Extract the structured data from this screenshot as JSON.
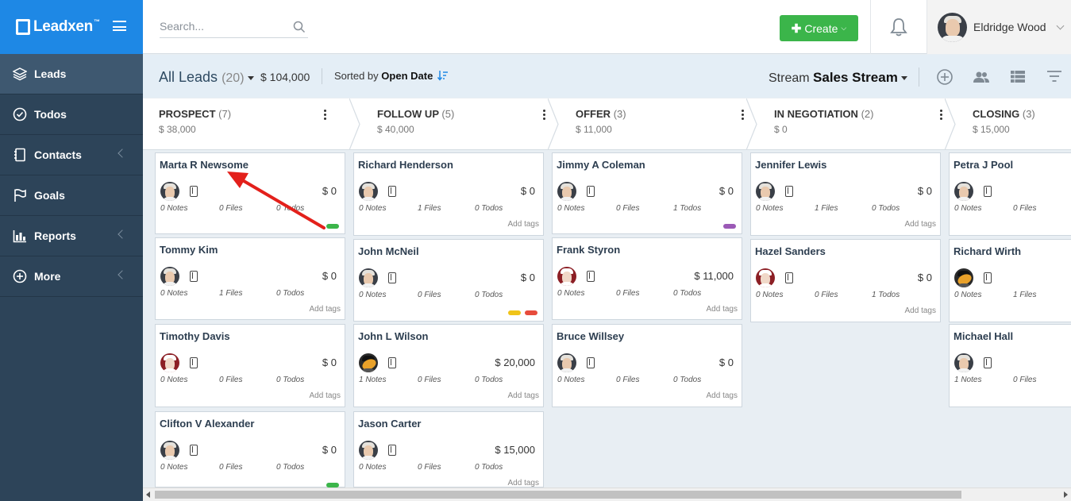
{
  "brand": {
    "name": "Leadxen",
    "tm": "™"
  },
  "sidebar": {
    "items": [
      {
        "label": "Leads",
        "icon": "layers-icon",
        "active": true,
        "chevron": false
      },
      {
        "label": "Todos",
        "icon": "check-circle-icon",
        "active": false,
        "chevron": false
      },
      {
        "label": "Contacts",
        "icon": "address-book-icon",
        "active": false,
        "chevron": true
      },
      {
        "label": "Goals",
        "icon": "flag-icon",
        "active": false,
        "chevron": false
      },
      {
        "label": "Reports",
        "icon": "bar-chart-icon",
        "active": false,
        "chevron": true
      },
      {
        "label": "More",
        "icon": "plus-circle-icon",
        "active": false,
        "chevron": true
      }
    ]
  },
  "header": {
    "search_placeholder": "Search...",
    "create_label": "Create",
    "user_name": "Eldridge Wood"
  },
  "subheader": {
    "title": "All Leads",
    "count": "(20)",
    "total": "$ 104,000",
    "sorted_prefix": "Sorted by",
    "sorted_field": "Open Date",
    "stream_prefix": "Stream",
    "stream_name": "Sales Stream"
  },
  "stages": [
    {
      "name": "PROSPECT",
      "count": "(7)",
      "amount": "$ 38,000"
    },
    {
      "name": "FOLLOW UP",
      "count": "(5)",
      "amount": "$ 40,000"
    },
    {
      "name": "OFFER",
      "count": "(3)",
      "amount": "$ 11,000"
    },
    {
      "name": "IN NEGOTIATION",
      "count": "(2)",
      "amount": "$ 0"
    },
    {
      "name": "CLOSING",
      "count": "(3)",
      "amount": "$ 15,000"
    }
  ],
  "columns": [
    {
      "cards": [
        {
          "name": "Marta R Newsome",
          "value": "$ 0",
          "notes": "0 Notes",
          "files": "0 Files",
          "todos": "0 Todos",
          "tags": "",
          "avatar": "default",
          "pills": [
            "#3bb54a"
          ]
        },
        {
          "name": "Tommy Kim",
          "value": "$ 0",
          "notes": "0 Notes",
          "files": "1 Files",
          "todos": "0 Todos",
          "tags": "Add tags",
          "avatar": "default",
          "pills": []
        },
        {
          "name": "Timothy Davis",
          "value": "$ 0",
          "notes": "0 Notes",
          "files": "0 Files",
          "todos": "0 Todos",
          "tags": "Add tags",
          "avatar": "alt",
          "pills": []
        },
        {
          "name": "Clifton V Alexander",
          "value": "$ 0",
          "notes": "0 Notes",
          "files": "0 Files",
          "todos": "0 Todos",
          "tags": "",
          "avatar": "default",
          "pills": [
            "#3bb54a"
          ]
        }
      ]
    },
    {
      "cards": [
        {
          "name": "Richard Henderson",
          "value": "$ 0",
          "notes": "0 Notes",
          "files": "1 Files",
          "todos": "0 Todos",
          "tags": "Add tags",
          "avatar": "default",
          "pills": []
        },
        {
          "name": "John McNeil",
          "value": "$ 0",
          "notes": "0 Notes",
          "files": "0 Files",
          "todos": "0 Todos",
          "tags": "",
          "avatar": "default",
          "pills": [
            "#f0c419",
            "#e74c3c"
          ]
        },
        {
          "name": "John L Wilson",
          "value": "$ 20,000",
          "notes": "1 Notes",
          "files": "0 Files",
          "todos": "0 Todos",
          "tags": "Add tags",
          "avatar": "moto",
          "pills": []
        },
        {
          "name": "Jason Carter",
          "value": "$ 15,000",
          "notes": "0 Notes",
          "files": "0 Files",
          "todos": "0 Todos",
          "tags": "Add tags",
          "avatar": "default",
          "pills": []
        }
      ]
    },
    {
      "cards": [
        {
          "name": "Jimmy A Coleman",
          "value": "$ 0",
          "notes": "0 Notes",
          "files": "0 Files",
          "todos": "1 Todos",
          "tags": "",
          "avatar": "default",
          "pills": [
            "#9b59b6"
          ]
        },
        {
          "name": "Frank Styron",
          "value": "$ 11,000",
          "notes": "0 Notes",
          "files": "0 Files",
          "todos": "0 Todos",
          "tags": "Add tags",
          "avatar": "alt",
          "pills": []
        },
        {
          "name": "Bruce Willsey",
          "value": "$ 0",
          "notes": "0 Notes",
          "files": "0 Files",
          "todos": "0 Todos",
          "tags": "Add tags",
          "avatar": "default",
          "pills": []
        }
      ]
    },
    {
      "cards": [
        {
          "name": "Jennifer Lewis",
          "value": "$ 0",
          "notes": "0 Notes",
          "files": "1 Files",
          "todos": "0 Todos",
          "tags": "Add tags",
          "avatar": "default",
          "pills": []
        },
        {
          "name": "Hazel Sanders",
          "value": "$ 0",
          "notes": "0 Notes",
          "files": "0 Files",
          "todos": "1 Todos",
          "tags": "Add tags",
          "avatar": "alt",
          "pills": []
        }
      ]
    },
    {
      "cards": [
        {
          "name": "Petra J Pool",
          "value": "",
          "notes": "0 Notes",
          "files": "0 Files",
          "todos": "",
          "tags": "",
          "avatar": "default",
          "pills": []
        },
        {
          "name": "Richard Wirth",
          "value": "",
          "notes": "0 Notes",
          "files": "1 Files",
          "todos": "",
          "tags": "",
          "avatar": "moto",
          "pills": []
        },
        {
          "name": "Michael Hall",
          "value": "",
          "notes": "1 Notes",
          "files": "0 Files",
          "todos": "",
          "tags": "",
          "avatar": "default",
          "pills": []
        }
      ]
    }
  ]
}
